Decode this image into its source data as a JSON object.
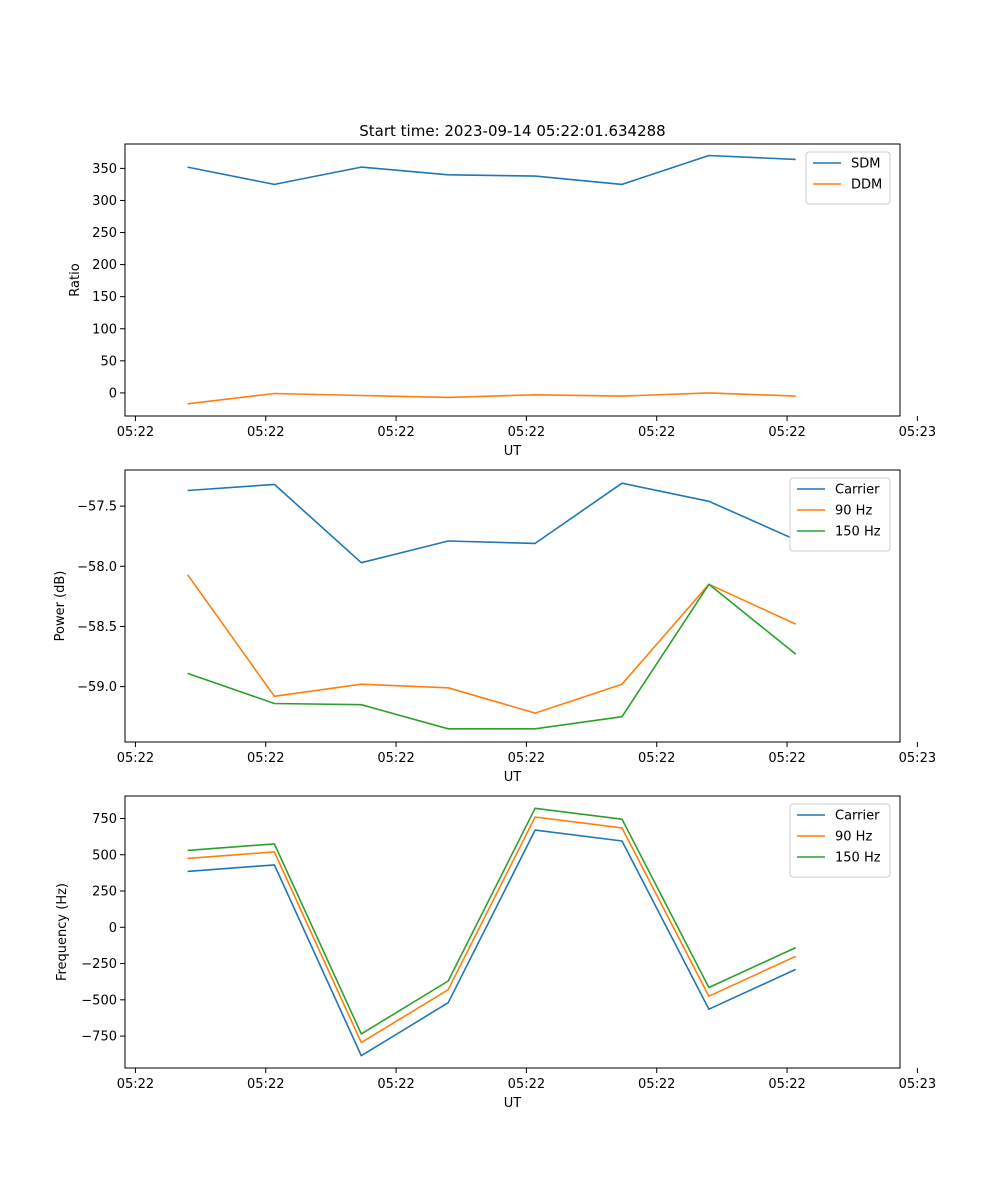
{
  "chart_data": [
    {
      "type": "line",
      "title": "Start time: 2023-09-14 05:22:01.634288",
      "xlabel": "UT",
      "ylabel": "Ratio",
      "xlim": [
        -0.12,
        8.8
      ],
      "ylim": [
        -36,
        388
      ],
      "x": [
        0.6,
        1.6,
        2.6,
        3.6,
        4.6,
        5.6,
        6.6,
        7.6
      ],
      "xticks": [
        0,
        1.5,
        3,
        4.5,
        6,
        7.5,
        9
      ],
      "xtick_labels": [
        "05:22",
        "05:22",
        "05:22",
        "05:22",
        "05:22",
        "05:22",
        "05:23"
      ],
      "yticks": [
        0,
        50,
        100,
        150,
        200,
        250,
        300,
        350
      ],
      "ytick_labels": [
        "0",
        "50",
        "100",
        "150",
        "200",
        "250",
        "300",
        "350"
      ],
      "legend": "top-right",
      "series": [
        {
          "name": "SDM",
          "color": "#1f77b4",
          "values": [
            352,
            325,
            352,
            340,
            338,
            325,
            370,
            364
          ]
        },
        {
          "name": "DDM",
          "color": "#ff7f0e",
          "values": [
            -17,
            -1,
            -4,
            -7,
            -3,
            -5,
            0,
            -5
          ]
        }
      ]
    },
    {
      "type": "line",
      "title": "",
      "xlabel": "UT",
      "ylabel": "Power (dB)",
      "xlim": [
        -0.12,
        8.8
      ],
      "ylim": [
        -59.46,
        -57.2
      ],
      "x": [
        0.6,
        1.6,
        2.6,
        3.6,
        4.6,
        5.6,
        6.6,
        7.6
      ],
      "xticks": [
        0,
        1.5,
        3,
        4.5,
        6,
        7.5,
        9
      ],
      "xtick_labels": [
        "05:22",
        "05:22",
        "05:22",
        "05:22",
        "05:22",
        "05:22",
        "05:23"
      ],
      "yticks": [
        -59.0,
        -58.5,
        -58.0,
        -57.5
      ],
      "ytick_labels": [
        "−59.0",
        "−58.5",
        "−58.0",
        "−57.5"
      ],
      "legend": "top-right",
      "series": [
        {
          "name": "Carrier",
          "color": "#1f77b4",
          "values": [
            -57.37,
            -57.32,
            -57.97,
            -57.79,
            -57.81,
            -57.31,
            -57.46,
            -57.78
          ]
        },
        {
          "name": "90 Hz",
          "color": "#ff7f0e",
          "values": [
            -58.07,
            -59.08,
            -58.98,
            -59.01,
            -59.22,
            -58.98,
            -58.15,
            -58.48
          ]
        },
        {
          "name": "150 Hz",
          "color": "#2ca02c",
          "values": [
            -58.89,
            -59.14,
            -59.15,
            -59.35,
            -59.35,
            -59.25,
            -58.15,
            -58.73
          ]
        }
      ]
    },
    {
      "type": "line",
      "title": "",
      "xlabel": "UT",
      "ylabel": "Frequency (Hz)",
      "xlim": [
        -0.12,
        8.8
      ],
      "ylim": [
        -970,
        905
      ],
      "x": [
        0.6,
        1.6,
        2.6,
        3.6,
        4.6,
        5.6,
        6.6,
        7.6
      ],
      "xticks": [
        0,
        1.5,
        3,
        4.5,
        6,
        7.5,
        9
      ],
      "xtick_labels": [
        "05:22",
        "05:22",
        "05:22",
        "05:22",
        "05:22",
        "05:22",
        "05:23"
      ],
      "yticks": [
        -750,
        -500,
        -250,
        0,
        250,
        500,
        750
      ],
      "ytick_labels": [
        "−750",
        "−500",
        "−250",
        "0",
        "250",
        "500",
        "750"
      ],
      "legend": "top-right",
      "series": [
        {
          "name": "Carrier",
          "color": "#1f77b4",
          "values": [
            385,
            430,
            -885,
            -520,
            670,
            595,
            -565,
            -290
          ]
        },
        {
          "name": "90 Hz",
          "color": "#ff7f0e",
          "values": [
            475,
            520,
            -795,
            -430,
            760,
            685,
            -475,
            -200
          ]
        },
        {
          "name": "150 Hz",
          "color": "#2ca02c",
          "values": [
            530,
            575,
            -735,
            -370,
            820,
            745,
            -415,
            -140
          ]
        }
      ]
    }
  ]
}
